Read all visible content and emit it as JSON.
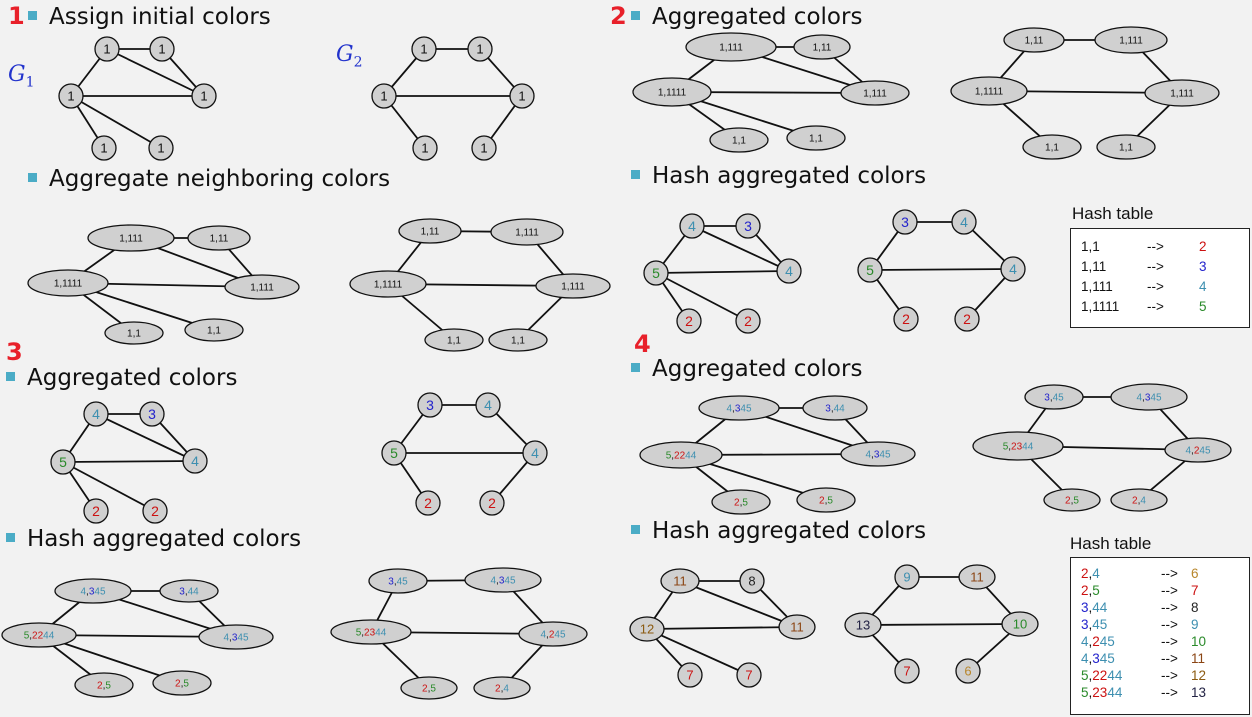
{
  "colors": {
    "c1": "#111111",
    "c2": "#cc1111",
    "c3": "#2222cc",
    "c4": "#3d8fb0",
    "c5": "#2a8a2a",
    "c6": "#b8862b",
    "c7": "#cc1111",
    "c8": "#222222",
    "c9": "#3d8fb0",
    "c10": "#2a8a2a",
    "c11": "#8b4513",
    "c12": "#8b5a10",
    "c13": "#222244"
  },
  "steps": [
    {
      "id": "s1",
      "number": "1",
      "title": "Assign initial colors"
    },
    {
      "id": "s1b",
      "number": "",
      "title": "Aggregate neighboring colors"
    },
    {
      "id": "s2",
      "number": "2",
      "title": "Aggregated colors"
    },
    {
      "id": "s2b",
      "number": "",
      "title": "Hash aggregated colors"
    },
    {
      "id": "s3",
      "number": "3",
      "title": "Aggregated colors"
    },
    {
      "id": "s3b",
      "number": "",
      "title": "Hash aggregated colors"
    },
    {
      "id": "s4",
      "number": "4",
      "title": "Aggregated colors"
    },
    {
      "id": "s4b",
      "number": "",
      "title": "Hash aggregated colors"
    }
  ],
  "graph_labels": {
    "g1": "G",
    "g1_sub": "1",
    "g2": "G",
    "g2_sub": "2"
  },
  "hash_tables": [
    {
      "title": "Hash table",
      "arrow": "-->",
      "rows": [
        {
          "key": [
            [
              "1,1",
              "c1"
            ]
          ],
          "value": "2",
          "vcolor": "c2"
        },
        {
          "key": [
            [
              "1,11",
              "c1"
            ]
          ],
          "value": "3",
          "vcolor": "c3"
        },
        {
          "key": [
            [
              "1,111",
              "c1"
            ]
          ],
          "value": "4",
          "vcolor": "c4"
        },
        {
          "key": [
            [
              "1,1111",
              "c1"
            ]
          ],
          "value": "5",
          "vcolor": "c5"
        }
      ]
    },
    {
      "title": "Hash table",
      "arrow": "-->",
      "rows": [
        {
          "key": [
            [
              "2",
              "c2"
            ],
            [
              ",",
              "c1"
            ],
            [
              "4",
              "c4"
            ]
          ],
          "value": "6",
          "vcolor": "c6"
        },
        {
          "key": [
            [
              "2",
              "c2"
            ],
            [
              ",",
              "c1"
            ],
            [
              "5",
              "c5"
            ]
          ],
          "value": "7",
          "vcolor": "c7"
        },
        {
          "key": [
            [
              "3",
              "c3"
            ],
            [
              ",",
              "c1"
            ],
            [
              "44",
              "c4"
            ]
          ],
          "value": "8",
          "vcolor": "c8"
        },
        {
          "key": [
            [
              "3",
              "c3"
            ],
            [
              ",",
              "c1"
            ],
            [
              "45",
              "c4"
            ]
          ],
          "value": "9",
          "vcolor": "c9"
        },
        {
          "key": [
            [
              "4",
              "c4"
            ],
            [
              ",",
              "c1"
            ],
            [
              "2",
              "c2"
            ],
            [
              "45",
              "c4"
            ]
          ],
          "value": "10",
          "vcolor": "c10"
        },
        {
          "key": [
            [
              "4",
              "c4"
            ],
            [
              ",",
              "c1"
            ],
            [
              "3",
              "c3"
            ],
            [
              "45",
              "c4"
            ]
          ],
          "value": "11",
          "vcolor": "c11"
        },
        {
          "key": [
            [
              "5",
              "c5"
            ],
            [
              ",",
              "c1"
            ],
            [
              "22",
              "c2"
            ],
            [
              "44",
              "c4"
            ]
          ],
          "value": "12",
          "vcolor": "c12"
        },
        {
          "key": [
            [
              "5",
              "c5"
            ],
            [
              ",",
              "c1"
            ],
            [
              "23",
              "c2"
            ],
            [
              "44",
              "c4"
            ]
          ],
          "value": "13",
          "vcolor": "c13"
        }
      ]
    }
  ],
  "graphs": {
    "g1_init": {
      "nodes": {
        "A": [
          [
            "1",
            "c1"
          ]
        ],
        "B": [
          [
            "1",
            "c1"
          ]
        ],
        "C": [
          [
            "1",
            "c1"
          ]
        ],
        "D": [
          [
            "1",
            "c1"
          ]
        ],
        "E": [
          [
            "1",
            "c1"
          ]
        ],
        "F": [
          [
            "1",
            "c1"
          ]
        ]
      }
    },
    "g2_init": {
      "nodes": {
        "A": [
          [
            "1",
            "c1"
          ]
        ],
        "B": [
          [
            "1",
            "c1"
          ]
        ],
        "C": [
          [
            "1",
            "c1"
          ]
        ],
        "D": [
          [
            "1",
            "c1"
          ]
        ],
        "E": [
          [
            "1",
            "c1"
          ]
        ],
        "F": [
          [
            "1",
            "c1"
          ]
        ]
      }
    },
    "g1_agg1": {
      "nodes": {
        "A": [
          [
            "1,111",
            "c1"
          ]
        ],
        "B": [
          [
            "1,11",
            "c1"
          ]
        ],
        "C": [
          [
            "1,1111",
            "c1"
          ]
        ],
        "D": [
          [
            "1,111",
            "c1"
          ]
        ],
        "E": [
          [
            "1,1",
            "c1"
          ]
        ],
        "F": [
          [
            "1,1",
            "c1"
          ]
        ]
      }
    },
    "g2_agg1": {
      "nodes": {
        "A": [
          [
            "1,11",
            "c1"
          ]
        ],
        "B": [
          [
            "1,111",
            "c1"
          ]
        ],
        "C": [
          [
            "1,1111",
            "c1"
          ]
        ],
        "D": [
          [
            "1,111",
            "c1"
          ]
        ],
        "E": [
          [
            "1,1",
            "c1"
          ]
        ],
        "F": [
          [
            "1,1",
            "c1"
          ]
        ]
      }
    },
    "g1_hash1": {
      "nodes": {
        "A": [
          [
            "4",
            "c4"
          ]
        ],
        "B": [
          [
            "3",
            "c3"
          ]
        ],
        "C": [
          [
            "5",
            "c5"
          ]
        ],
        "D": [
          [
            "4",
            "c4"
          ]
        ],
        "E": [
          [
            "2",
            "c2"
          ]
        ],
        "F": [
          [
            "2",
            "c2"
          ]
        ]
      }
    },
    "g2_hash1": {
      "nodes": {
        "A": [
          [
            "3",
            "c3"
          ]
        ],
        "B": [
          [
            "4",
            "c4"
          ]
        ],
        "C": [
          [
            "5",
            "c5"
          ]
        ],
        "D": [
          [
            "4",
            "c4"
          ]
        ],
        "E": [
          [
            "2",
            "c2"
          ]
        ],
        "F": [
          [
            "2",
            "c2"
          ]
        ]
      }
    },
    "g1_agg2": {
      "nodes": {
        "A": [
          [
            "4",
            "c4"
          ],
          [
            ",",
            "c1"
          ],
          [
            "3",
            "c3"
          ],
          [
            "45",
            "c4"
          ]
        ],
        "B": [
          [
            "3",
            "c3"
          ],
          [
            ",",
            "c1"
          ],
          [
            "44",
            "c4"
          ]
        ],
        "C": [
          [
            "5",
            "c5"
          ],
          [
            ",",
            "c1"
          ],
          [
            "22",
            "c2"
          ],
          [
            "44",
            "c4"
          ]
        ],
        "D": [
          [
            "4",
            "c4"
          ],
          [
            ",",
            "c1"
          ],
          [
            "3",
            "c3"
          ],
          [
            "45",
            "c4"
          ]
        ],
        "E": [
          [
            "2",
            "c2"
          ],
          [
            ",",
            "c1"
          ],
          [
            "5",
            "c5"
          ]
        ],
        "F": [
          [
            "2",
            "c2"
          ],
          [
            ",",
            "c1"
          ],
          [
            "5",
            "c5"
          ]
        ]
      }
    },
    "g2_agg2": {
      "nodes": {
        "A": [
          [
            "3",
            "c3"
          ],
          [
            ",",
            "c1"
          ],
          [
            "45",
            "c4"
          ]
        ],
        "B": [
          [
            "4",
            "c4"
          ],
          [
            ",",
            "c1"
          ],
          [
            "3",
            "c3"
          ],
          [
            "45",
            "c4"
          ]
        ],
        "C": [
          [
            "5",
            "c5"
          ],
          [
            ",",
            "c1"
          ],
          [
            "23",
            "c2"
          ],
          [
            "44",
            "c4"
          ]
        ],
        "D": [
          [
            "4",
            "c4"
          ],
          [
            ",",
            "c1"
          ],
          [
            "2",
            "c2"
          ],
          [
            "45",
            "c4"
          ]
        ],
        "E": [
          [
            "2",
            "c2"
          ],
          [
            ",",
            "c1"
          ],
          [
            "5",
            "c5"
          ]
        ],
        "F": [
          [
            "2",
            "c2"
          ],
          [
            ",",
            "c1"
          ],
          [
            "4",
            "c4"
          ]
        ]
      }
    },
    "g1_hash2": {
      "nodes": {
        "A": [
          [
            "11",
            "c11"
          ]
        ],
        "B": [
          [
            "8",
            "c8"
          ]
        ],
        "C": [
          [
            "12",
            "c12"
          ]
        ],
        "D": [
          [
            "11",
            "c11"
          ]
        ],
        "E": [
          [
            "7",
            "c7"
          ]
        ],
        "F": [
          [
            "7",
            "c7"
          ]
        ]
      }
    },
    "g2_hash2": {
      "nodes": {
        "A": [
          [
            "9",
            "c9"
          ]
        ],
        "B": [
          [
            "11",
            "c11"
          ]
        ],
        "C": [
          [
            "13",
            "c13"
          ]
        ],
        "D": [
          [
            "10",
            "c10"
          ]
        ],
        "E": [
          [
            "7",
            "c7"
          ]
        ],
        "F": [
          [
            "6",
            "c6"
          ]
        ]
      }
    }
  }
}
